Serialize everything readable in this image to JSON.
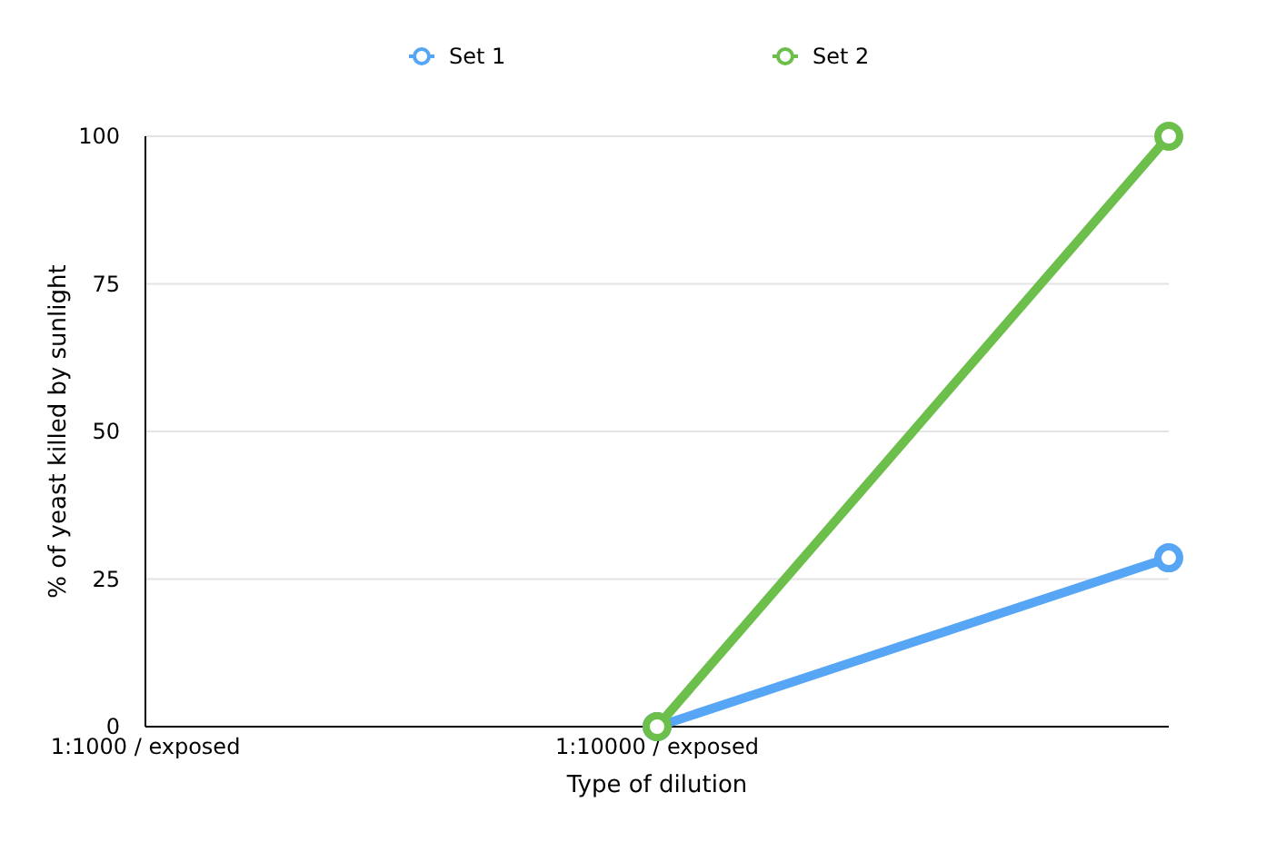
{
  "chart_data": {
    "type": "line",
    "xlabel": "Type of dilution",
    "ylabel": "% of yeast killed by sunlight",
    "categories": [
      "1:1000 / exposed",
      "1:10000 / exposed",
      null
    ],
    "series": [
      {
        "name": "Set 1",
        "color": "#57a5f5",
        "values": [
          null,
          0,
          28.6
        ]
      },
      {
        "name": "Set 2",
        "color": "#6cbf4a",
        "values": [
          null,
          0,
          100
        ]
      }
    ],
    "ylim": [
      0,
      100
    ],
    "yticks": [
      0,
      25,
      50,
      75,
      100
    ],
    "grid": "y",
    "legend": "top",
    "marker": "circle",
    "line_style": "solid"
  }
}
